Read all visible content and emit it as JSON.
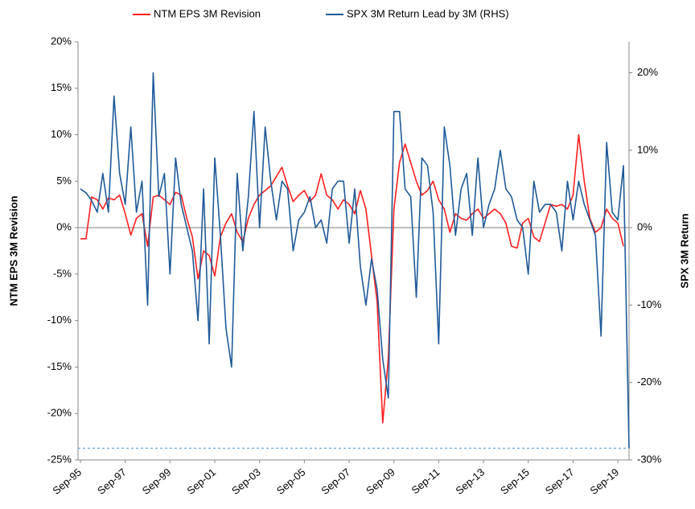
{
  "chart_data": {
    "type": "line",
    "ylabel": "NTM EPS 3M Revision",
    "y2label": "SPX 3M Return",
    "categories": [
      "Sep-95",
      null,
      null,
      null,
      null,
      null,
      null,
      null,
      "Sep-97",
      null,
      null,
      null,
      null,
      null,
      null,
      null,
      "Sep-99",
      null,
      null,
      null,
      null,
      null,
      null,
      null,
      "Sep-01",
      null,
      null,
      null,
      null,
      null,
      null,
      null,
      "Sep-03",
      null,
      null,
      null,
      null,
      null,
      null,
      null,
      "Sep-05",
      null,
      null,
      null,
      null,
      null,
      null,
      null,
      "Sep-07",
      null,
      null,
      null,
      null,
      null,
      null,
      null,
      "Sep-09",
      null,
      null,
      null,
      null,
      null,
      null,
      null,
      "Sep-11",
      null,
      null,
      null,
      null,
      null,
      null,
      null,
      "Sep-13",
      null,
      null,
      null,
      null,
      null,
      null,
      null,
      "Sep-15",
      null,
      null,
      null,
      null,
      null,
      null,
      null,
      "Sep-17",
      null,
      null,
      null,
      null,
      null,
      null,
      null,
      "Sep-19",
      null,
      null
    ],
    "series": [
      {
        "name": "NTM EPS 3M Revision",
        "color": "#ff1f1f",
        "axis": "y",
        "values": [
          -1.2,
          -1.2,
          3.3,
          3.0,
          2.0,
          3.2,
          3.0,
          3.5,
          1.5,
          -0.8,
          1.0,
          1.5,
          -2.0,
          3.3,
          3.5,
          3.0,
          2.5,
          3.8,
          3.5,
          1.0,
          -1.0,
          -5.5,
          -2.5,
          -3.0,
          -5.2,
          -1.0,
          0.5,
          1.5,
          -0.5,
          -1.5,
          1.0,
          2.5,
          3.5,
          4.0,
          4.5,
          5.5,
          6.5,
          4.5,
          2.8,
          3.5,
          4.0,
          2.8,
          3.5,
          5.8,
          3.5,
          3.0,
          2.0,
          3.0,
          2.5,
          1.5,
          4.0,
          2.0,
          -3.0,
          -8.0,
          -21.0,
          -14.0,
          2.0,
          7.0,
          9.0,
          7.0,
          5.0,
          3.5,
          4.0,
          5.0,
          3.0,
          2.0,
          -0.5,
          1.5,
          1.0,
          0.8,
          1.5,
          2.0,
          1.0,
          1.5,
          2.0,
          1.5,
          0.5,
          -2.0,
          -2.2,
          0.5,
          1.0,
          -1.0,
          -1.5,
          0.5,
          2.5,
          2.3,
          2.5,
          2.0,
          3.5,
          10.0,
          5.0,
          1.0,
          -0.5,
          0.0,
          2.0,
          1.0,
          0.5,
          -2.0,
          null
        ]
      },
      {
        "name": "SPX 3M Return Lead by 3M (RHS)",
        "color": "#1f5a99",
        "axis": "y2",
        "values": [
          5,
          4.5,
          3.5,
          2,
          7,
          2,
          17,
          7,
          3,
          13,
          2,
          6,
          -10,
          20,
          4,
          7,
          -6,
          9,
          3,
          0,
          -3,
          -12,
          5,
          -15,
          9,
          -1,
          -13,
          -18,
          7,
          -3,
          4,
          15,
          0,
          13,
          6,
          1,
          6,
          5,
          -3,
          1,
          2,
          4,
          0,
          1,
          -2,
          5,
          6,
          6,
          -2,
          5,
          -5,
          -10,
          -4,
          -8,
          -17,
          -22,
          15,
          15,
          5,
          4,
          -9,
          9,
          8,
          2,
          -15,
          13,
          8,
          -1,
          5,
          7,
          -1,
          9,
          0,
          3,
          5,
          10,
          5,
          4,
          1,
          0,
          -6,
          6,
          2,
          3,
          3,
          2,
          -3,
          6,
          1,
          6,
          3,
          1,
          -1,
          -14,
          11,
          2,
          1,
          8,
          -28.5
        ]
      }
    ],
    "ylim": [
      -25,
      20
    ],
    "yticks": [
      {
        "value": -25,
        "label": "-25%"
      },
      {
        "value": -20,
        "label": "-20%"
      },
      {
        "value": -15,
        "label": "-15%"
      },
      {
        "value": -10,
        "label": "-10%"
      },
      {
        "value": -5,
        "label": "-5%"
      },
      {
        "value": 0,
        "label": "0%"
      },
      {
        "value": 5,
        "label": "5%"
      },
      {
        "value": 10,
        "label": "10%"
      },
      {
        "value": 15,
        "label": "15%"
      },
      {
        "value": 20,
        "label": "20%"
      }
    ],
    "y2lim": [
      -30,
      24
    ],
    "y2ticks": [
      {
        "value": -30,
        "label": "-30%"
      },
      {
        "value": -20,
        "label": "-20%"
      },
      {
        "value": -10,
        "label": "-10%"
      },
      {
        "value": 0,
        "label": "0%"
      },
      {
        "value": 10,
        "label": "10%"
      },
      {
        "value": 20,
        "label": "20%"
      }
    ],
    "zero_line": true,
    "last_value_line": true,
    "legend": "top"
  }
}
